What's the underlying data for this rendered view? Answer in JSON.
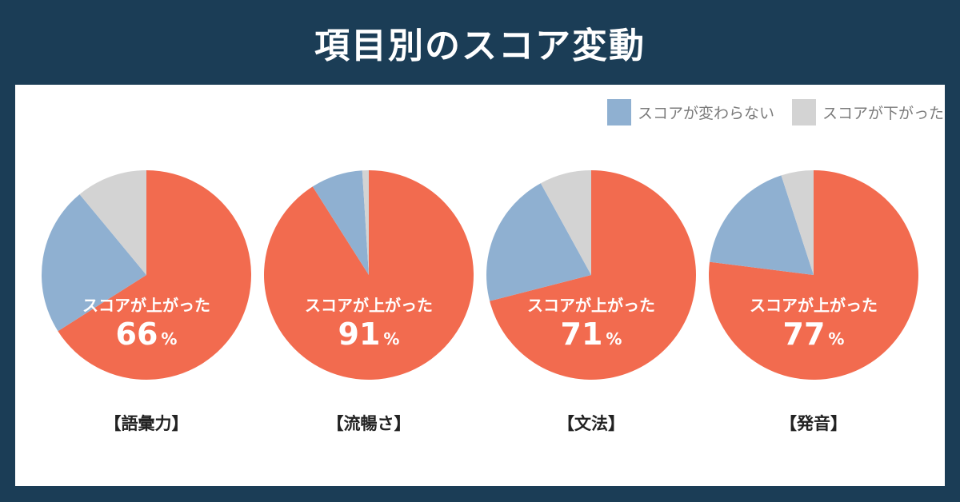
{
  "title": "項目別のスコア変動",
  "legend": [
    {
      "label": "スコアが変わらない",
      "color": "#8fb0d1"
    },
    {
      "label": "スコアが下がった",
      "color": "#d3d3d3"
    }
  ],
  "chart_data": {
    "type": "pie",
    "up_label": "スコアが上がった",
    "percent_sign": "%",
    "colors": {
      "up": "#f26b4f",
      "same": "#8fb0d1",
      "down": "#d3d3d3"
    },
    "series_names": {
      "up": "スコアが上がった",
      "same": "スコアが変わらない",
      "down": "スコアが下がった"
    },
    "pies": [
      {
        "category": "【語彙力】",
        "up": 66,
        "same": 23,
        "down": 11
      },
      {
        "category": "【流暢さ】",
        "up": 91,
        "same": 8,
        "down": 1
      },
      {
        "category": "【文法】",
        "up": 71,
        "same": 21,
        "down": 8
      },
      {
        "category": "【発音】",
        "up": 77,
        "same": 18,
        "down": 5
      }
    ]
  }
}
